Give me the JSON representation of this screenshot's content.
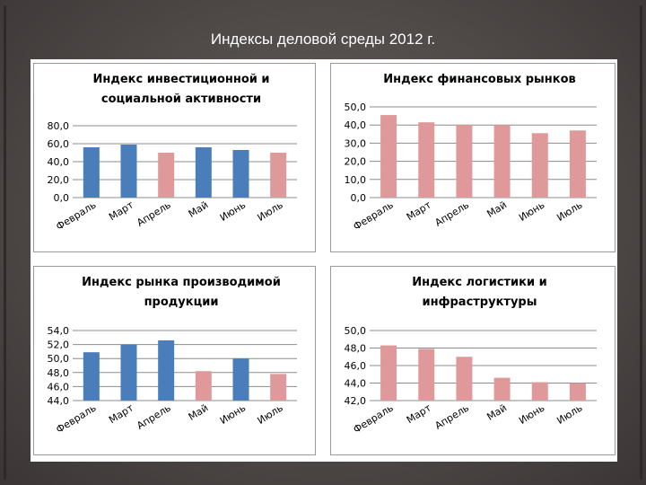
{
  "page_title": "Индексы деловой среды 2012  г.",
  "colors": {
    "blue": "#4a7ebb",
    "pink": "#e0999a",
    "grid": "#8c8c8c",
    "border": "#9a9a9a"
  },
  "chart_data": [
    {
      "type": "bar",
      "title": [
        "Индекс инвестиционной и",
        "социальной активности"
      ],
      "categories": [
        "Февраль",
        "Март",
        "Апрель",
        "Май",
        "Июнь",
        "Июль"
      ],
      "values": [
        56,
        59,
        50,
        56,
        53,
        50
      ],
      "bar_colors": [
        "blue",
        "blue",
        "pink",
        "blue",
        "blue",
        "pink"
      ],
      "ylim": [
        0,
        80
      ],
      "yticks": [
        "0,0",
        "20,0",
        "40,0",
        "60,0",
        "80,0"
      ],
      "grid": true
    },
    {
      "type": "bar",
      "title": [
        "Индекс финансовых рынков"
      ],
      "categories": [
        "Февраль",
        "Март",
        "Апрель",
        "Май",
        "Июнь",
        "Июль"
      ],
      "values": [
        45.5,
        41.5,
        40,
        40,
        35.5,
        37
      ],
      "bar_colors": [
        "pink",
        "pink",
        "pink",
        "pink",
        "pink",
        "pink"
      ],
      "ylim": [
        0,
        50
      ],
      "yticks": [
        "0,0",
        "10,0",
        "20,0",
        "30,0",
        "40,0",
        "50,0"
      ],
      "grid": true
    },
    {
      "type": "bar",
      "title": [
        "Индекс рынка производимой",
        "продукции"
      ],
      "categories": [
        "Февраль",
        "Март",
        "Апрель",
        "Май",
        "Июнь",
        "Июль"
      ],
      "values": [
        50.9,
        52,
        52.6,
        48.2,
        50,
        47.8
      ],
      "bar_colors": [
        "blue",
        "blue",
        "blue",
        "pink",
        "blue",
        "pink"
      ],
      "ylim": [
        44,
        54
      ],
      "yticks": [
        "44,0",
        "46,0",
        "48,0",
        "50,0",
        "52,0",
        "54,0"
      ],
      "grid": true
    },
    {
      "type": "bar",
      "title": [
        "Индекс логистики и",
        "инфраструктуры"
      ],
      "categories": [
        "Февраль",
        "Март",
        "Апрель",
        "Май",
        "Июнь",
        "Июль"
      ],
      "values": [
        48.3,
        47.9,
        47,
        44.6,
        44.1,
        44
      ],
      "bar_colors": [
        "pink",
        "pink",
        "pink",
        "pink",
        "pink",
        "pink"
      ],
      "ylim": [
        42,
        50
      ],
      "yticks": [
        "42,0",
        "44,0",
        "46,0",
        "48,0",
        "50,0"
      ],
      "grid": true
    }
  ]
}
